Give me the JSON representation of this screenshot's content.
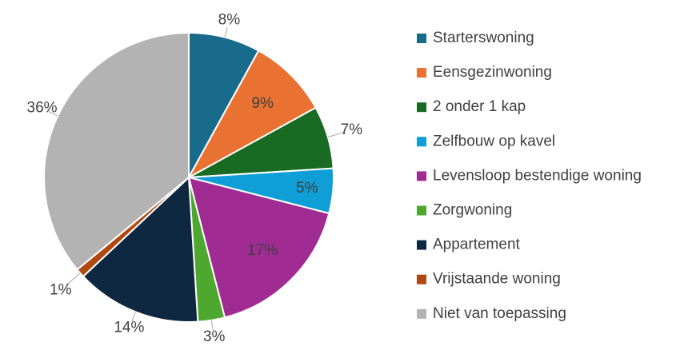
{
  "chart_data": {
    "type": "pie",
    "categories": [
      "Starterswoning",
      "Eensgezinwoning",
      "2 onder 1 kap",
      "Zelfbouw op kavel",
      "Levensloop bestendige woning",
      "Zorgwoning",
      "Appartement",
      "Vrijstaande woning",
      "Niet van toepassing"
    ],
    "values": [
      8,
      9,
      7,
      5,
      17,
      3,
      14,
      1,
      36
    ],
    "value_labels": [
      "8%",
      "9%",
      "7%",
      "5%",
      "17%",
      "3%",
      "14%",
      "1%",
      "36%"
    ],
    "colors": [
      "#196b8c",
      "#e97132",
      "#196b24",
      "#0f9ed5",
      "#a02b93",
      "#4ea72e",
      "#0e2841",
      "#b04812",
      "#b3b3b3"
    ],
    "legend": "right"
  }
}
